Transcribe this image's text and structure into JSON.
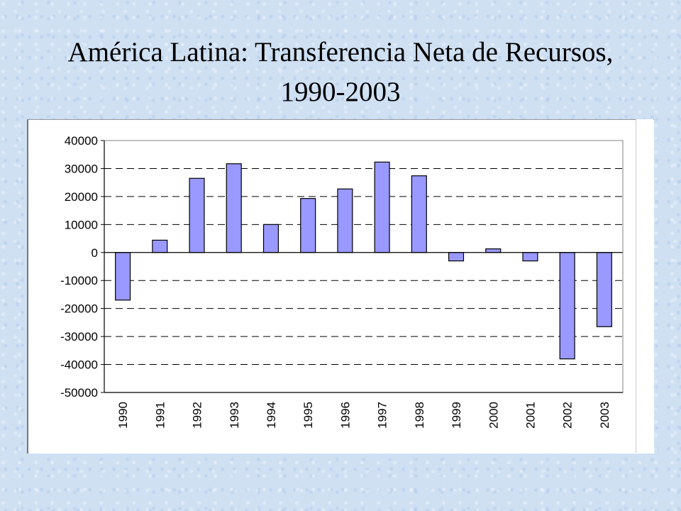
{
  "slide": {
    "title_line1": "América Latina: Transferencia Neta de Recursos,",
    "title_line2": "1990-2003"
  },
  "chart_data": {
    "type": "bar",
    "title": "América Latina: Transferencia Neta de Recursos, 1990-2003",
    "xlabel": "",
    "ylabel": "",
    "categories": [
      "1990",
      "1991",
      "1992",
      "1993",
      "1994",
      "1995",
      "1996",
      "1997",
      "1998",
      "1999",
      "2000",
      "2001",
      "2002",
      "2003"
    ],
    "series": [
      {
        "values": [
          -17000,
          4400,
          26500,
          31700,
          10000,
          19300,
          22700,
          32300,
          27400,
          -3000,
          1300,
          -3000,
          -38000,
          -26500
        ]
      }
    ],
    "ylim": [
      -50000,
      40000
    ],
    "yticks": [
      40000,
      30000,
      20000,
      10000,
      0,
      -10000,
      -20000,
      -30000,
      -40000,
      -50000
    ],
    "ytick_labels": [
      "40000",
      "30000",
      "20000",
      "10000",
      "0",
      "-10000",
      "-20000",
      "-30000",
      "-40000",
      "-50000"
    ],
    "grid": "dashed horizontal",
    "colors": {
      "bar_fill": "#9999ff",
      "bar_stroke": "#000000",
      "grid": "#000000"
    }
  }
}
